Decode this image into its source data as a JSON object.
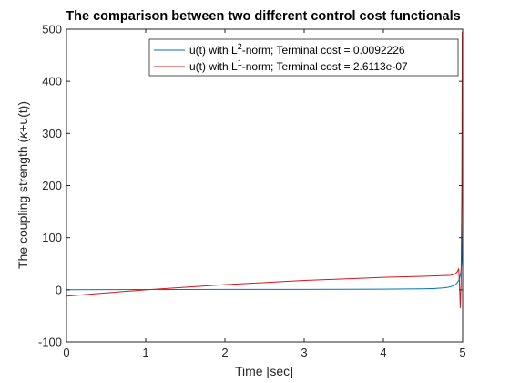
{
  "chart_data": {
    "type": "line",
    "title": "The comparison between two different control cost functionals",
    "xlabel": "Time [sec]",
    "ylabel_parts": [
      "The coupling strength (",
      "κ",
      "+u(t))"
    ],
    "xlim": [
      0,
      5
    ],
    "ylim": [
      -100,
      500
    ],
    "xticks": [
      0,
      1,
      2,
      3,
      4,
      5
    ],
    "yticks": [
      -100,
      0,
      100,
      200,
      300,
      400,
      500
    ],
    "grid": false,
    "legend_position": "top-right",
    "series": [
      {
        "name": "u(t) with L2-norm; Terminal cost = 0.0092226",
        "legend_parts": [
          "u(t) with L",
          "2",
          "-norm; Terminal cost = 0.0092226"
        ],
        "color": "#0072BD",
        "x": [
          0,
          0.5,
          1,
          1.5,
          2,
          2.5,
          3,
          3.5,
          4,
          4.3,
          4.5,
          4.65,
          4.75,
          4.82,
          4.87,
          4.9,
          4.93,
          4.95,
          4.965,
          4.975,
          4.985,
          4.99,
          4.995,
          5.0
        ],
        "y": [
          0.2,
          0.4,
          0.5,
          0.6,
          0.7,
          0.8,
          0.9,
          1.0,
          1.3,
          1.6,
          2.0,
          2.6,
          3.6,
          5.0,
          7.0,
          9.0,
          13.0,
          18.0,
          25.0,
          32.0,
          45.0,
          60.0,
          90.0,
          135.0
        ]
      },
      {
        "name": "u(t) with L1-norm; Terminal cost = 2.6113e-07",
        "legend_parts": [
          "u(t) with L",
          "1",
          "-norm; Terminal cost = 2.6113e-07"
        ],
        "color": "#D9141A",
        "x": [
          0,
          0.5,
          1,
          1.5,
          2,
          2.5,
          3,
          3.5,
          4,
          4.5,
          4.85,
          4.9,
          4.93,
          4.95,
          4.96,
          4.97,
          4.98,
          4.99,
          4.995,
          5.0
        ],
        "y": [
          -12,
          -6,
          0,
          5,
          10,
          14,
          18,
          21,
          24,
          26,
          28,
          30,
          34,
          40,
          15,
          -35,
          10,
          200,
          495,
          150
        ]
      }
    ]
  }
}
